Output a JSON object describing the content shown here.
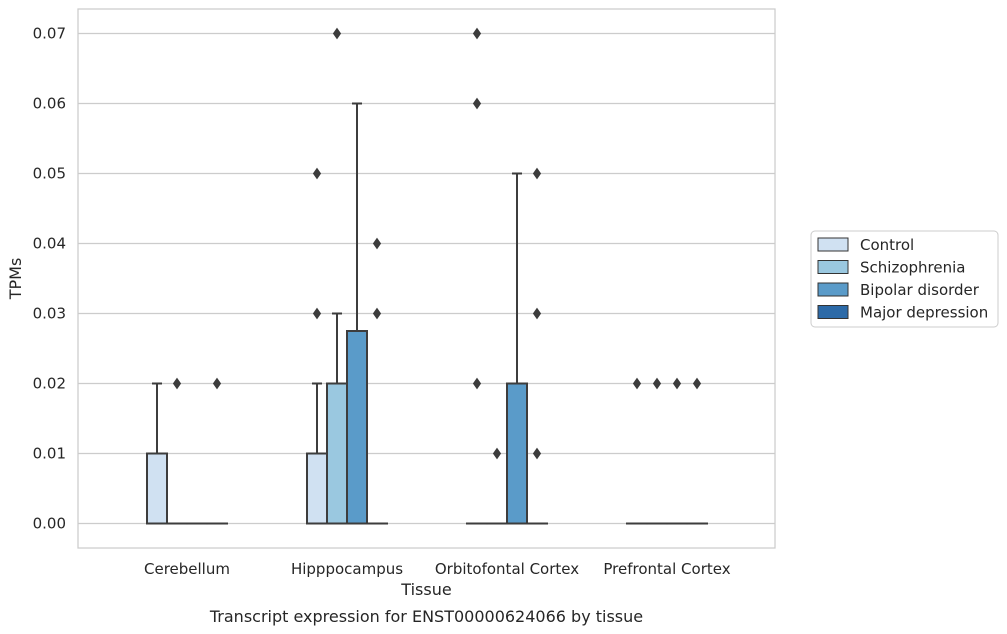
{
  "chart_data": {
    "type": "box",
    "xlabel": "Tissue",
    "ylabel": "TPMs",
    "caption": "Transcript expression for ENST00000624066 by tissue",
    "ylim": [
      -0.0035,
      0.0735
    ],
    "yticks": [
      "0.00",
      "0.01",
      "0.02",
      "0.03",
      "0.04",
      "0.05",
      "0.06",
      "0.07"
    ],
    "grid": "horizontal",
    "legend_position": "right",
    "categories": [
      "Cerebellum",
      "Hipppocampus",
      "Orbitofontal Cortex",
      "Prefrontal Cortex"
    ],
    "series": [
      {
        "name": "Control",
        "color": "#d0e1f2",
        "boxes": [
          {
            "q1": 0.0,
            "median": 0.0,
            "q3": 0.01,
            "whisker_low": 0.0,
            "whisker_high": 0.02,
            "outliers": []
          },
          {
            "q1": 0.0,
            "median": 0.0,
            "q3": 0.01,
            "whisker_low": 0.0,
            "whisker_high": 0.02,
            "outliers": [
              0.03,
              0.05
            ]
          },
          {
            "q1": 0.0,
            "median": 0.0,
            "q3": 0.0,
            "whisker_low": 0.0,
            "whisker_high": 0.0,
            "outliers": [
              0.02,
              0.06,
              0.07
            ]
          },
          {
            "q1": 0.0,
            "median": 0.0,
            "q3": 0.0,
            "whisker_low": 0.0,
            "whisker_high": 0.0,
            "outliers": [
              0.02
            ]
          }
        ]
      },
      {
        "name": "Schizophrenia",
        "color": "#9ac8e0",
        "boxes": [
          {
            "q1": 0.0,
            "median": 0.0,
            "q3": 0.0,
            "whisker_low": 0.0,
            "whisker_high": 0.0,
            "outliers": [
              0.02
            ]
          },
          {
            "q1": 0.0,
            "median": 0.0,
            "q3": 0.02,
            "whisker_low": 0.0,
            "whisker_high": 0.03,
            "outliers": [
              0.07
            ]
          },
          {
            "q1": 0.0,
            "median": 0.0,
            "q3": 0.0,
            "whisker_low": 0.0,
            "whisker_high": 0.0,
            "outliers": [
              0.01
            ]
          },
          {
            "q1": 0.0,
            "median": 0.0,
            "q3": 0.0,
            "whisker_low": 0.0,
            "whisker_high": 0.0,
            "outliers": [
              0.02
            ]
          }
        ]
      },
      {
        "name": "Bipolar disorder",
        "color": "#5a9bc9",
        "boxes": [
          {
            "q1": 0.0,
            "median": 0.0,
            "q3": 0.0,
            "whisker_low": 0.0,
            "whisker_high": 0.0,
            "outliers": []
          },
          {
            "q1": 0.0,
            "median": 0.0,
            "q3": 0.0275,
            "whisker_low": 0.0,
            "whisker_high": 0.06,
            "outliers": []
          },
          {
            "q1": 0.0,
            "median": 0.0,
            "q3": 0.02,
            "whisker_low": 0.0,
            "whisker_high": 0.05,
            "outliers": []
          },
          {
            "q1": 0.0,
            "median": 0.0,
            "q3": 0.0,
            "whisker_low": 0.0,
            "whisker_high": 0.0,
            "outliers": [
              0.02
            ]
          }
        ]
      },
      {
        "name": "Major depression",
        "color": "#2c6aa8",
        "boxes": [
          {
            "q1": 0.0,
            "median": 0.0,
            "q3": 0.0,
            "whisker_low": 0.0,
            "whisker_high": 0.0,
            "outliers": [
              0.02
            ]
          },
          {
            "q1": 0.0,
            "median": 0.0,
            "q3": 0.0,
            "whisker_low": 0.0,
            "whisker_high": 0.0,
            "outliers": [
              0.03,
              0.04
            ]
          },
          {
            "q1": 0.0,
            "median": 0.0,
            "q3": 0.0,
            "whisker_low": 0.0,
            "whisker_high": 0.0,
            "outliers": [
              0.01,
              0.03,
              0.05
            ]
          },
          {
            "q1": 0.0,
            "median": 0.0,
            "q3": 0.0,
            "whisker_low": 0.0,
            "whisker_high": 0.0,
            "outliers": [
              0.02
            ]
          }
        ]
      }
    ]
  }
}
